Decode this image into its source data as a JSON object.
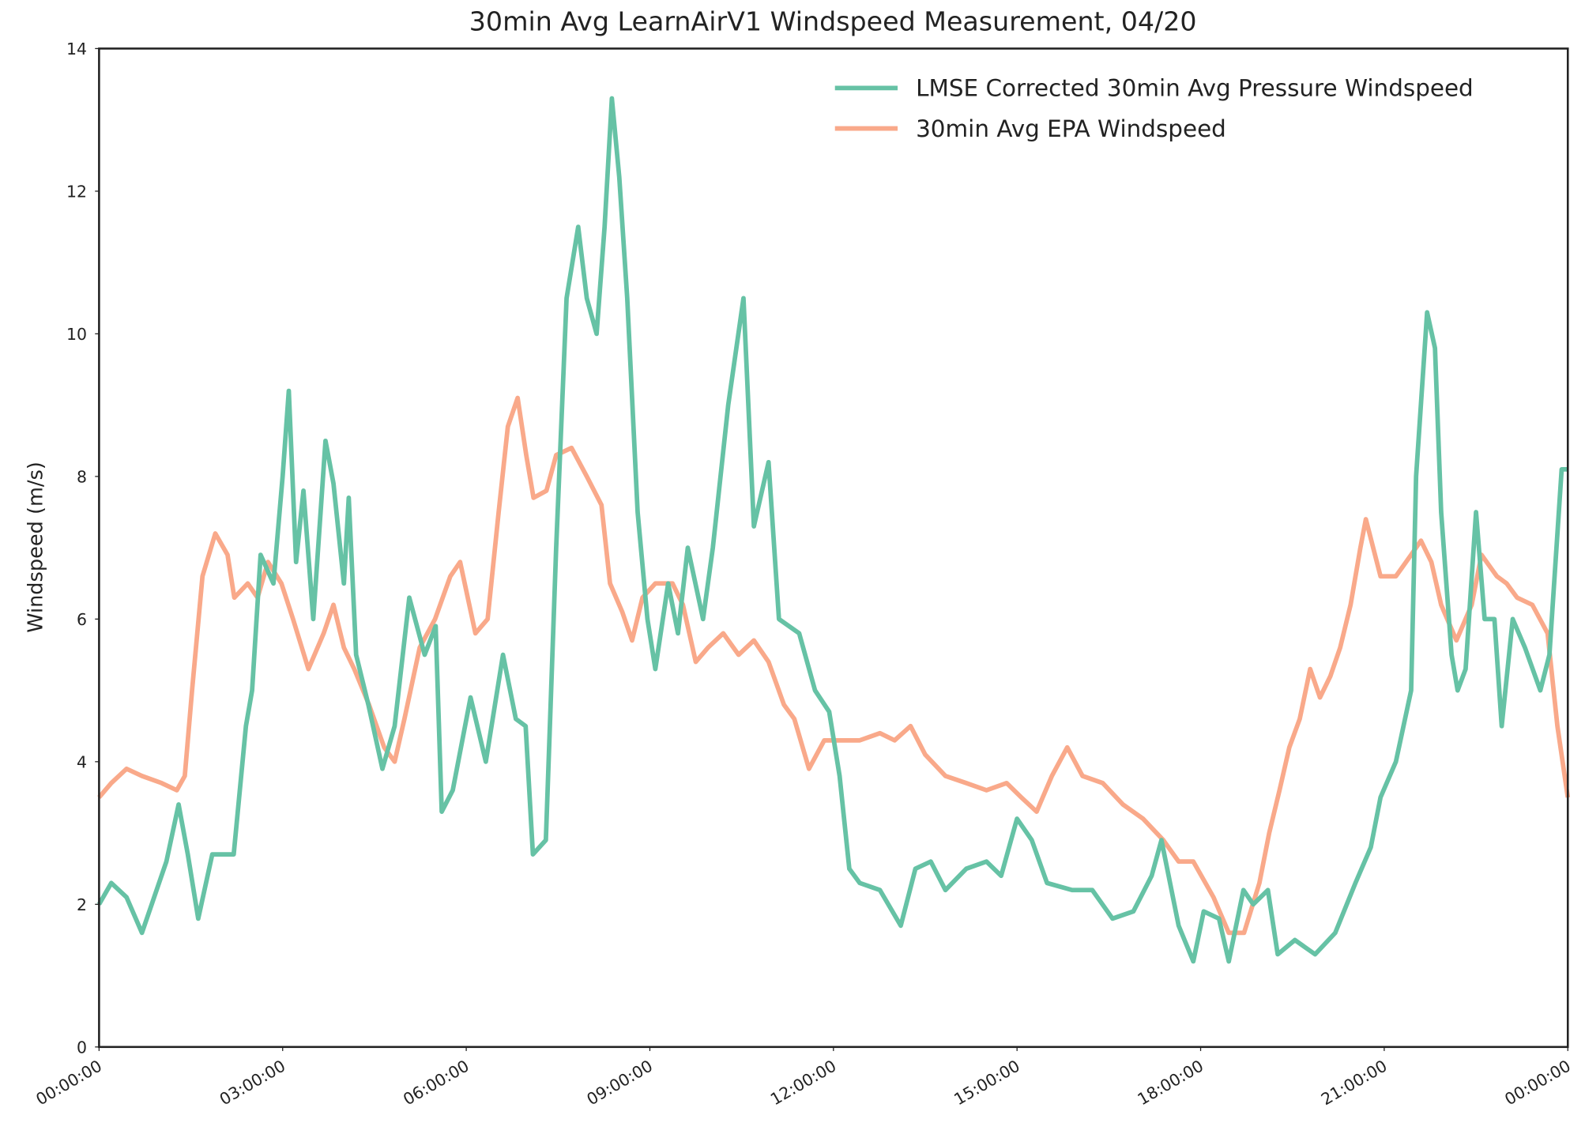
{
  "chart_data": {
    "type": "line",
    "title": "30min Avg LearnAirV1 Windspeed Measurement, 04/20",
    "y_label": "Windspeed (m/s)",
    "xlim": [
      0,
      24
    ],
    "xticks": [
      {
        "value": 0,
        "label": "00:00:00"
      },
      {
        "value": 3,
        "label": "03:00:00"
      },
      {
        "value": 6,
        "label": "06:00:00"
      },
      {
        "value": 9,
        "label": "09:00:00"
      },
      {
        "value": 12,
        "label": "12:00:00"
      },
      {
        "value": 15,
        "label": "15:00:00"
      },
      {
        "value": 18,
        "label": "18:00:00"
      },
      {
        "value": 21,
        "label": "21:00:00"
      },
      {
        "value": 24,
        "label": "00:00:00"
      }
    ],
    "ylim": [
      0,
      14
    ],
    "yticks": [
      0,
      2,
      4,
      6,
      8,
      10,
      12,
      14
    ],
    "legend": "upper right",
    "series": [
      {
        "name": "LMSE Corrected 30min Avg Pressure Windspeed",
        "color": "#66c2a5",
        "x": [
          0,
          0.2,
          0.45,
          0.7,
          0.9,
          1.1,
          1.3,
          1.45,
          1.62,
          1.85,
          2.2,
          2.4,
          2.5,
          2.64,
          2.85,
          3.0,
          3.1,
          3.22,
          3.34,
          3.5,
          3.7,
          3.83,
          4.0,
          4.08,
          4.2,
          4.4,
          4.63,
          4.83,
          5.07,
          5.32,
          5.5,
          5.6,
          5.78,
          6.07,
          6.32,
          6.6,
          6.81,
          6.97,
          7.09,
          7.3,
          7.47,
          7.64,
          7.83,
          7.97,
          8.13,
          8.26,
          8.38,
          8.5,
          8.63,
          8.8,
          8.96,
          9.09,
          9.3,
          9.46,
          9.62,
          9.87,
          10.03,
          10.28,
          10.53,
          10.7,
          10.94,
          11.11,
          11.44,
          11.7,
          11.93,
          12.1,
          12.26,
          12.43,
          12.76,
          13.1,
          13.34,
          13.59,
          13.83,
          14.17,
          14.5,
          14.74,
          15.0,
          15.24,
          15.49,
          15.9,
          16.23,
          16.56,
          16.9,
          17.2,
          17.36,
          17.64,
          17.88,
          18.05,
          18.3,
          18.46,
          18.7,
          18.86,
          19.1,
          19.26,
          19.54,
          19.87,
          20.2,
          20.53,
          20.78,
          20.94,
          21.19,
          21.44,
          21.52,
          21.7,
          21.83,
          21.93,
          22.1,
          22.2,
          22.33,
          22.5,
          22.64,
          22.8,
          22.92,
          23.1,
          23.3,
          23.55,
          23.7,
          23.9,
          24
        ],
        "values": [
          2.0,
          2.3,
          2.1,
          1.6,
          2.1,
          2.6,
          3.4,
          2.7,
          1.8,
          2.7,
          2.7,
          4.5,
          5.0,
          6.9,
          6.5,
          8.0,
          9.2,
          6.8,
          7.8,
          6.0,
          8.5,
          7.9,
          6.5,
          7.7,
          5.5,
          4.8,
          3.9,
          4.5,
          6.3,
          5.5,
          5.9,
          3.3,
          3.6,
          4.9,
          4.0,
          5.5,
          4.6,
          4.5,
          2.7,
          2.9,
          7.0,
          10.5,
          11.5,
          10.5,
          10.0,
          11.5,
          13.3,
          12.2,
          10.5,
          7.5,
          6.0,
          5.3,
          6.5,
          5.8,
          7.0,
          6.0,
          7.0,
          9.0,
          10.5,
          7.3,
          8.2,
          6.0,
          5.8,
          5.0,
          4.7,
          3.8,
          2.5,
          2.3,
          2.2,
          1.7,
          2.5,
          2.6,
          2.2,
          2.5,
          2.6,
          2.4,
          3.2,
          2.9,
          2.3,
          2.2,
          2.2,
          1.8,
          1.9,
          2.4,
          2.9,
          1.7,
          1.2,
          1.9,
          1.8,
          1.2,
          2.2,
          2.0,
          2.2,
          1.3,
          1.5,
          1.3,
          1.6,
          2.3,
          2.8,
          3.5,
          4.0,
          5.0,
          8.0,
          10.3,
          9.8,
          7.5,
          5.5,
          5.0,
          5.3,
          7.5,
          6.0,
          6.0,
          4.5,
          6.0,
          5.6,
          5.0,
          5.5,
          8.1,
          8.1
        ]
      },
      {
        "name": "30min Avg EPA Windspeed",
        "color": "#f9a98a",
        "x": [
          0,
          0.2,
          0.45,
          0.7,
          1.02,
          1.27,
          1.4,
          1.52,
          1.69,
          1.9,
          2.1,
          2.21,
          2.43,
          2.59,
          2.76,
          2.98,
          3.17,
          3.42,
          3.67,
          3.83,
          4.0,
          4.17,
          4.41,
          4.66,
          4.83,
          4.99,
          5.24,
          5.49,
          5.74,
          5.9,
          6.15,
          6.35,
          6.53,
          6.68,
          6.84,
          6.98,
          7.1,
          7.31,
          7.47,
          7.72,
          7.97,
          8.21,
          8.35,
          8.55,
          8.71,
          8.88,
          9.09,
          9.37,
          9.54,
          9.75,
          9.95,
          10.2,
          10.45,
          10.7,
          10.94,
          11.19,
          11.36,
          11.6,
          11.85,
          12.18,
          12.43,
          12.76,
          13.0,
          13.26,
          13.5,
          13.83,
          14.17,
          14.5,
          14.83,
          15.07,
          15.32,
          15.57,
          15.82,
          16.07,
          16.4,
          16.73,
          17.06,
          17.39,
          17.64,
          17.88,
          18.21,
          18.46,
          18.71,
          18.96,
          19.12,
          19.29,
          19.45,
          19.62,
          19.79,
          19.95,
          20.12,
          20.28,
          20.45,
          20.61,
          20.7,
          20.94,
          21.19,
          21.44,
          21.6,
          21.77,
          21.93,
          22.18,
          22.43,
          22.59,
          22.84,
          23.0,
          23.17,
          23.42,
          23.67,
          23.83,
          24
        ],
        "values": [
          3.5,
          3.7,
          3.9,
          3.8,
          3.7,
          3.6,
          3.8,
          5.0,
          6.6,
          7.2,
          6.9,
          6.3,
          6.5,
          6.3,
          6.8,
          6.5,
          6.0,
          5.3,
          5.8,
          6.2,
          5.6,
          5.3,
          4.8,
          4.2,
          4.0,
          4.6,
          5.6,
          6.0,
          6.6,
          6.8,
          5.8,
          6.0,
          7.5,
          8.7,
          9.1,
          8.3,
          7.7,
          7.8,
          8.3,
          8.4,
          8.0,
          7.6,
          6.5,
          6.1,
          5.7,
          6.3,
          6.5,
          6.5,
          6.2,
          5.4,
          5.6,
          5.8,
          5.5,
          5.7,
          5.4,
          4.8,
          4.6,
          3.9,
          4.3,
          4.3,
          4.3,
          4.4,
          4.3,
          4.5,
          4.1,
          3.8,
          3.7,
          3.6,
          3.7,
          3.5,
          3.3,
          3.8,
          4.2,
          3.8,
          3.7,
          3.4,
          3.2,
          2.9,
          2.6,
          2.6,
          2.1,
          1.6,
          1.6,
          2.3,
          3.0,
          3.6,
          4.2,
          4.6,
          5.3,
          4.9,
          5.2,
          5.6,
          6.2,
          7.0,
          7.4,
          6.6,
          6.6,
          6.9,
          7.1,
          6.8,
          6.2,
          5.7,
          6.2,
          6.9,
          6.6,
          6.5,
          6.3,
          6.2,
          5.8,
          4.5,
          3.5
        ]
      }
    ]
  }
}
